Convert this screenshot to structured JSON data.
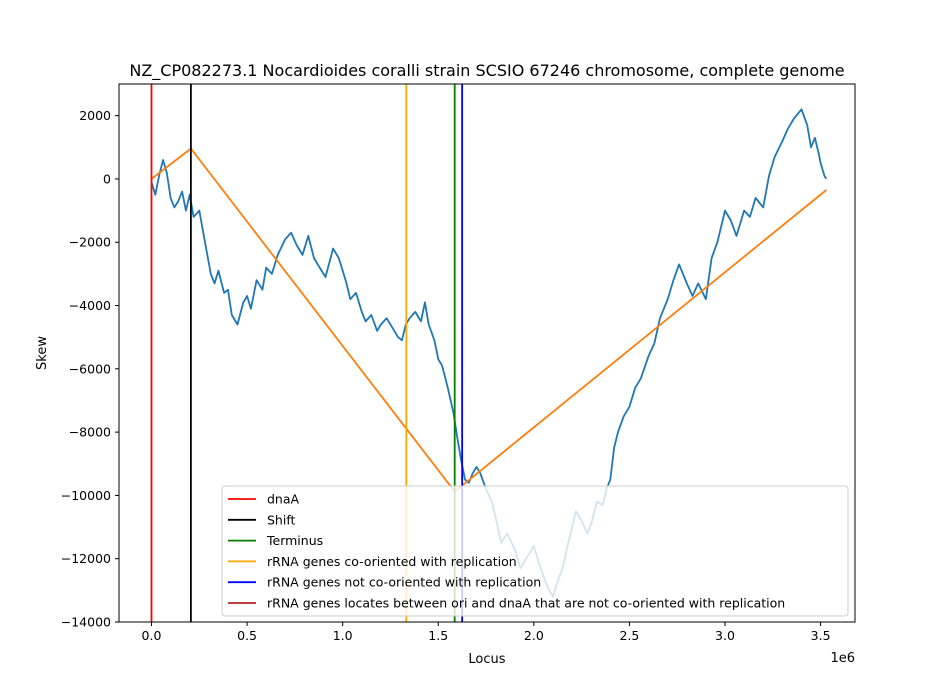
{
  "chart_data": {
    "type": "line",
    "title": "NZ_CP082273.1 Nocardioides coralli strain SCSIO 67246 chromosome, complete genome",
    "xlabel": "Locus",
    "ylabel": "Skew",
    "x_offset_label": "1e6",
    "xlim": [
      -0.17,
      3.68
    ],
    "ylim": [
      -14000,
      3000
    ],
    "x_ticks": [
      0.0,
      0.5,
      1.0,
      1.5,
      2.0,
      2.5,
      3.0,
      3.5
    ],
    "x_tick_labels": [
      "0.0",
      "0.5",
      "1.0",
      "1.5",
      "2.0",
      "2.5",
      "3.0",
      "3.5"
    ],
    "y_ticks": [
      -14000,
      -12000,
      -10000,
      -8000,
      -6000,
      -4000,
      -2000,
      0,
      2000
    ],
    "y_tick_labels": [
      "−14000",
      "−12000",
      "−10000",
      "−8000",
      "−6000",
      "−4000",
      "−2000",
      "0",
      "2000"
    ],
    "grid": false,
    "legend_position": "lower-right",
    "series": [
      {
        "color": "#1f77b4",
        "x": [
          0.0,
          0.02,
          0.04,
          0.06,
          0.08,
          0.1,
          0.12,
          0.14,
          0.16,
          0.18,
          0.2,
          0.22,
          0.25,
          0.28,
          0.31,
          0.33,
          0.35,
          0.38,
          0.4,
          0.42,
          0.45,
          0.48,
          0.5,
          0.52,
          0.55,
          0.58,
          0.6,
          0.63,
          0.66,
          0.7,
          0.73,
          0.76,
          0.79,
          0.8,
          0.82,
          0.85,
          0.88,
          0.91,
          0.95,
          0.98,
          1.0,
          1.02,
          1.04,
          1.07,
          1.1,
          1.12,
          1.15,
          1.18,
          1.2,
          1.23,
          1.26,
          1.29,
          1.31,
          1.33,
          1.35,
          1.38,
          1.41,
          1.43,
          1.45,
          1.48,
          1.5,
          1.52,
          1.55,
          1.58,
          1.6,
          1.62,
          1.64,
          1.66,
          1.68,
          1.7,
          1.72,
          1.75,
          1.78,
          1.8,
          1.83,
          1.86,
          1.9,
          1.93,
          1.96,
          2.0,
          2.03,
          2.06,
          2.08,
          2.1,
          2.12,
          2.15,
          2.18,
          2.2,
          2.22,
          2.25,
          2.28,
          2.3,
          2.33,
          2.36,
          2.38,
          2.4,
          2.42,
          2.44,
          2.47,
          2.5,
          2.53,
          2.56,
          2.6,
          2.63,
          2.66,
          2.7,
          2.73,
          2.76,
          2.8,
          2.83,
          2.86,
          2.9,
          2.93,
          2.96,
          3.0,
          3.03,
          3.06,
          3.1,
          3.13,
          3.16,
          3.2,
          3.23,
          3.26,
          3.3,
          3.33,
          3.36,
          3.4,
          3.43,
          3.45,
          3.47,
          3.49,
          3.5,
          3.52,
          3.53
        ],
        "y": [
          -100,
          -500,
          100,
          600,
          200,
          -600,
          -900,
          -700,
          -400,
          -1000,
          -500,
          -1200,
          -1000,
          -2000,
          -3000,
          -3300,
          -2900,
          -3600,
          -3500,
          -4300,
          -4600,
          -3900,
          -3700,
          -4100,
          -3200,
          -3500,
          -2800,
          -3000,
          -2400,
          -1900,
          -1700,
          -2100,
          -2400,
          -2200,
          -1800,
          -2500,
          -2800,
          -3100,
          -2200,
          -2500,
          -2900,
          -3300,
          -3800,
          -3600,
          -4200,
          -4500,
          -4300,
          -4800,
          -4600,
          -4400,
          -4700,
          -5000,
          -5100,
          -4600,
          -4400,
          -4200,
          -4500,
          -3900,
          -4600,
          -5100,
          -5700,
          -5900,
          -6600,
          -7400,
          -8200,
          -8900,
          -9500,
          -9600,
          -9300,
          -9100,
          -9300,
          -9800,
          -10200,
          -10700,
          -11500,
          -11200,
          -11700,
          -12300,
          -12000,
          -11600,
          -12200,
          -12700,
          -13000,
          -13200,
          -12800,
          -12300,
          -11500,
          -11000,
          -10500,
          -10800,
          -11200,
          -10900,
          -10200,
          -10300,
          -9800,
          -9500,
          -8500,
          -8000,
          -7500,
          -7200,
          -6600,
          -6300,
          -5600,
          -5200,
          -4400,
          -3800,
          -3200,
          -2700,
          -3300,
          -3700,
          -3300,
          -3800,
          -2500,
          -2000,
          -1000,
          -1300,
          -1800,
          -1000,
          -1200,
          -600,
          -900,
          100,
          700,
          1200,
          1600,
          1900,
          2200,
          1700,
          1000,
          1300,
          800,
          500,
          100,
          0
        ]
      },
      {
        "color": "#ff7f0e",
        "x": [
          0.0,
          0.206,
          1.586,
          3.53
        ],
        "y": [
          0,
          960,
          -9880,
          -350
        ]
      }
    ],
    "vertical_lines": [
      {
        "name": "dnaA",
        "x": 0.0,
        "color": "#ff0000"
      },
      {
        "name": "Shift",
        "x": 0.206,
        "color": "#000000"
      },
      {
        "name": "Terminus",
        "x": 1.586,
        "color": "#008000"
      },
      {
        "name": "rRNA genes co-oriented with replication",
        "x": 1.333,
        "color": "#ffa500"
      },
      {
        "name": "rRNA genes not co-oriented with replication",
        "x": 1.625,
        "color": "#0000ff"
      }
    ],
    "legend": [
      {
        "label": "dnaA",
        "color": "#ff0000"
      },
      {
        "label": "Shift",
        "color": "#000000"
      },
      {
        "label": "Terminus",
        "color": "#008000"
      },
      {
        "label": "rRNA genes co-oriented with replication",
        "color": "#ffa500"
      },
      {
        "label": "rRNA genes not co-oriented with replication",
        "color": "#0000ff"
      },
      {
        "label": "rRNA genes locates between ori and dnaA that are not co-oriented with replication",
        "color": "#b22222"
      }
    ]
  }
}
